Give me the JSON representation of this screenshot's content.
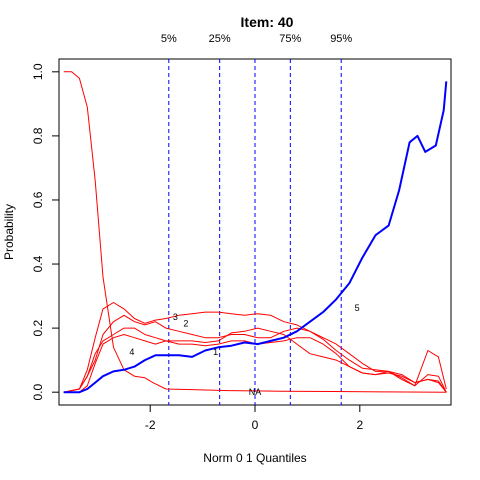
{
  "chart_data": {
    "type": "line",
    "title": "Item:  40",
    "xlabel": "Norm 0 1 Quantiles",
    "ylabel": "Probability",
    "xlim": [
      -3.74,
      3.74
    ],
    "ylim": [
      -0.04,
      1.04
    ],
    "x_ticks": [
      -2,
      0,
      2
    ],
    "x_tick_labels": [
      "-2",
      "0",
      "2"
    ],
    "y_ticks": [
      0.0,
      0.2,
      0.4,
      0.6,
      0.8,
      1.0
    ],
    "y_tick_labels": [
      "0.0",
      "0.2",
      "0.4",
      "0.6",
      "0.8",
      "1.0"
    ],
    "grid": false,
    "quantiles": [
      {
        "label": "5%",
        "x": -1.645
      },
      {
        "label": "25%",
        "x": -0.674
      },
      {
        "label": "",
        "x": 0.0
      },
      {
        "label": "75%",
        "x": 0.674
      },
      {
        "label": "95%",
        "x": 1.645
      }
    ],
    "colors": {
      "key": "#0000ff",
      "distractor": "#ff0000",
      "quantile": "#0000ff"
    },
    "series": [
      {
        "label": "NA",
        "color": "#ff0000",
        "label_at": [
          0.0,
          0.0
        ],
        "points": [
          [
            -3.65,
            1.0
          ],
          [
            -3.5,
            1.0
          ],
          [
            -3.35,
            0.98
          ],
          [
            -3.2,
            0.89
          ],
          [
            -3.05,
            0.66
          ],
          [
            -2.9,
            0.36
          ],
          [
            -2.7,
            0.14
          ],
          [
            -2.5,
            0.07
          ],
          [
            -2.3,
            0.05
          ],
          [
            -2.1,
            0.045
          ],
          [
            -1.95,
            0.03
          ],
          [
            -1.7,
            0.01
          ],
          [
            -1.2,
            0.008
          ],
          [
            -0.5,
            0.005
          ],
          [
            0.5,
            0.003
          ],
          [
            1.5,
            0.002
          ],
          [
            2.5,
            0.001
          ],
          [
            3.65,
            0.0
          ]
        ]
      },
      {
        "label": "1",
        "color": "#ff0000",
        "label_at": [
          -0.75,
          0.125
        ],
        "points": [
          [
            -3.65,
            0.0
          ],
          [
            -3.35,
            0.0
          ],
          [
            -3.2,
            0.02
          ],
          [
            -3.05,
            0.09
          ],
          [
            -2.9,
            0.15
          ],
          [
            -2.7,
            0.17
          ],
          [
            -2.5,
            0.18
          ],
          [
            -2.3,
            0.17
          ],
          [
            -2.1,
            0.16
          ],
          [
            -1.9,
            0.15
          ],
          [
            -1.7,
            0.16
          ],
          [
            -1.45,
            0.16
          ],
          [
            -1.2,
            0.16
          ],
          [
            -0.95,
            0.155
          ],
          [
            -0.7,
            0.16
          ],
          [
            -0.45,
            0.185
          ],
          [
            -0.2,
            0.19
          ],
          [
            0.05,
            0.2
          ],
          [
            0.3,
            0.19
          ],
          [
            0.55,
            0.18
          ],
          [
            0.8,
            0.15
          ],
          [
            1.05,
            0.12
          ],
          [
            1.3,
            0.11
          ],
          [
            1.55,
            0.1
          ],
          [
            1.8,
            0.08
          ],
          [
            2.05,
            0.06
          ],
          [
            2.3,
            0.055
          ],
          [
            2.55,
            0.06
          ],
          [
            2.8,
            0.05
          ],
          [
            3.05,
            0.03
          ],
          [
            3.3,
            0.04
          ],
          [
            3.5,
            0.03
          ],
          [
            3.65,
            0.0
          ]
        ]
      },
      {
        "label": "2",
        "color": "#ff0000",
        "label_at": [
          -1.32,
          0.215
        ],
        "points": [
          [
            -3.65,
            0.0
          ],
          [
            -3.35,
            0.01
          ],
          [
            -3.2,
            0.05
          ],
          [
            -3.05,
            0.1
          ],
          [
            -2.9,
            0.18
          ],
          [
            -2.7,
            0.22
          ],
          [
            -2.5,
            0.24
          ],
          [
            -2.3,
            0.22
          ],
          [
            -2.1,
            0.21
          ],
          [
            -1.9,
            0.22
          ],
          [
            -1.7,
            0.2
          ],
          [
            -1.45,
            0.19
          ],
          [
            -1.2,
            0.18
          ],
          [
            -0.95,
            0.17
          ],
          [
            -0.7,
            0.17
          ],
          [
            -0.45,
            0.18
          ],
          [
            -0.2,
            0.18
          ],
          [
            0.05,
            0.17
          ],
          [
            0.3,
            0.17
          ],
          [
            0.55,
            0.19
          ],
          [
            0.8,
            0.2
          ],
          [
            1.05,
            0.19
          ],
          [
            1.3,
            0.17
          ],
          [
            1.55,
            0.15
          ],
          [
            1.8,
            0.12
          ],
          [
            2.05,
            0.09
          ],
          [
            2.3,
            0.065
          ],
          [
            2.55,
            0.065
          ],
          [
            2.8,
            0.045
          ],
          [
            3.05,
            0.02
          ],
          [
            3.3,
            0.13
          ],
          [
            3.5,
            0.11
          ],
          [
            3.65,
            0.01
          ]
        ]
      },
      {
        "label": "3",
        "color": "#ff0000",
        "label_at": [
          -1.52,
          0.235
        ],
        "points": [
          [
            -3.65,
            0.0
          ],
          [
            -3.35,
            0.01
          ],
          [
            -3.2,
            0.07
          ],
          [
            -3.05,
            0.17
          ],
          [
            -2.9,
            0.26
          ],
          [
            -2.7,
            0.28
          ],
          [
            -2.5,
            0.26
          ],
          [
            -2.3,
            0.23
          ],
          [
            -2.1,
            0.215
          ],
          [
            -1.9,
            0.225
          ],
          [
            -1.7,
            0.23
          ],
          [
            -1.45,
            0.24
          ],
          [
            -1.2,
            0.245
          ],
          [
            -0.95,
            0.25
          ],
          [
            -0.7,
            0.25
          ],
          [
            -0.45,
            0.245
          ],
          [
            -0.2,
            0.24
          ],
          [
            0.05,
            0.245
          ],
          [
            0.3,
            0.24
          ],
          [
            0.55,
            0.22
          ],
          [
            0.8,
            0.21
          ],
          [
            1.05,
            0.19
          ],
          [
            1.3,
            0.165
          ],
          [
            1.55,
            0.13
          ],
          [
            1.8,
            0.1
          ],
          [
            2.05,
            0.075
          ],
          [
            2.3,
            0.07
          ],
          [
            2.55,
            0.065
          ],
          [
            2.8,
            0.04
          ],
          [
            3.05,
            0.02
          ],
          [
            3.3,
            0.055
          ],
          [
            3.5,
            0.05
          ],
          [
            3.65,
            0.0
          ]
        ]
      },
      {
        "label": "4",
        "color": "#ff0000",
        "label_at": [
          -2.35,
          0.125
        ],
        "points": [
          [
            -3.65,
            0.0
          ],
          [
            -3.35,
            0.01
          ],
          [
            -3.2,
            0.05
          ],
          [
            -3.05,
            0.12
          ],
          [
            -2.9,
            0.16
          ],
          [
            -2.7,
            0.18
          ],
          [
            -2.5,
            0.2
          ],
          [
            -2.3,
            0.2
          ],
          [
            -2.1,
            0.18
          ],
          [
            -1.9,
            0.17
          ],
          [
            -1.7,
            0.16
          ],
          [
            -1.45,
            0.15
          ],
          [
            -1.2,
            0.15
          ],
          [
            -0.95,
            0.145
          ],
          [
            -0.7,
            0.15
          ],
          [
            -0.45,
            0.16
          ],
          [
            -0.2,
            0.16
          ],
          [
            0.05,
            0.15
          ],
          [
            0.3,
            0.155
          ],
          [
            0.55,
            0.16
          ],
          [
            0.8,
            0.17
          ],
          [
            1.05,
            0.17
          ],
          [
            1.3,
            0.15
          ],
          [
            1.55,
            0.12
          ],
          [
            1.8,
            0.08
          ],
          [
            2.05,
            0.06
          ],
          [
            2.3,
            0.055
          ],
          [
            2.55,
            0.065
          ],
          [
            2.8,
            0.055
          ],
          [
            3.05,
            0.03
          ],
          [
            3.3,
            0.04
          ],
          [
            3.5,
            0.035
          ],
          [
            3.65,
            0.0
          ]
        ]
      },
      {
        "label": "5",
        "color": "#0000ff",
        "label_at": [
          1.95,
          0.262
        ],
        "points": [
          [
            -3.65,
            0.0
          ],
          [
            -3.35,
            0.0
          ],
          [
            -3.2,
            0.01
          ],
          [
            -3.05,
            0.03
          ],
          [
            -2.9,
            0.05
          ],
          [
            -2.7,
            0.065
          ],
          [
            -2.5,
            0.07
          ],
          [
            -2.3,
            0.08
          ],
          [
            -2.1,
            0.1
          ],
          [
            -1.9,
            0.115
          ],
          [
            -1.7,
            0.115
          ],
          [
            -1.45,
            0.115
          ],
          [
            -1.2,
            0.11
          ],
          [
            -0.95,
            0.13
          ],
          [
            -0.7,
            0.14
          ],
          [
            -0.45,
            0.145
          ],
          [
            -0.2,
            0.155
          ],
          [
            0.05,
            0.15
          ],
          [
            0.3,
            0.16
          ],
          [
            0.55,
            0.17
          ],
          [
            0.8,
            0.19
          ],
          [
            1.05,
            0.22
          ],
          [
            1.3,
            0.25
          ],
          [
            1.55,
            0.29
          ],
          [
            1.8,
            0.34
          ],
          [
            2.05,
            0.42
          ],
          [
            2.3,
            0.49
          ],
          [
            2.55,
            0.52
          ],
          [
            2.75,
            0.63
          ],
          [
            2.95,
            0.78
          ],
          [
            3.1,
            0.8
          ],
          [
            3.25,
            0.75
          ],
          [
            3.45,
            0.77
          ],
          [
            3.6,
            0.88
          ],
          [
            3.65,
            0.97
          ]
        ]
      }
    ]
  }
}
